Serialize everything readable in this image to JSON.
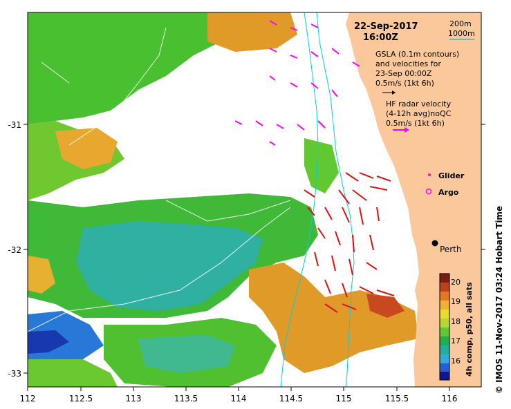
{
  "map": {
    "date": "22-Sep-2017",
    "time": "16:00Z",
    "x_ticks": [
      "112",
      "112.5",
      "113",
      "113.5",
      "114",
      "114.5",
      "115",
      "115.5",
      "116"
    ],
    "y_ticks": [
      "-31",
      "-32",
      "-33"
    ],
    "city_label": "Perth",
    "credit": "© IMOS 11-Nov-2017 03:24 Hobart Time"
  },
  "legend": {
    "isobath_200": "200m",
    "isobath_1000": "1000m",
    "gsla_line1": "GSLA (0.1m contours)",
    "gsla_line2": "and velocities for",
    "gsla_line3": "23-Sep 00:00Z",
    "gsla_scale": "0.5m/s (1kt 6h)",
    "hf_line1": "HF radar velocity",
    "hf_line2": "(4-12h avg)noQC",
    "hf_scale": "0.5m/s (1kt 6h)",
    "glider": "Glider",
    "argo": "Argo"
  },
  "colorbar": {
    "title": "4h comp, p50, all sats",
    "ticks": [
      "20",
      "19",
      "18",
      "17",
      "16"
    ],
    "colors": [
      "#7a1e10",
      "#c0401a",
      "#e07a20",
      "#f0b030",
      "#e8dc30",
      "#b4d830",
      "#60c830",
      "#20b050",
      "#20b0a0",
      "#30a8e0",
      "#2060d0",
      "#101890"
    ]
  },
  "colors": {
    "land": "#fbc89b",
    "isobath": "#00d0e0",
    "hf_arrow": "#e01010",
    "gsla_arrow": "#ff00ff",
    "sst_warm": "#e6a22a",
    "sst_green": "#40c030",
    "sst_cyan": "#20b0a0",
    "sst_blue": "#2060d0"
  }
}
